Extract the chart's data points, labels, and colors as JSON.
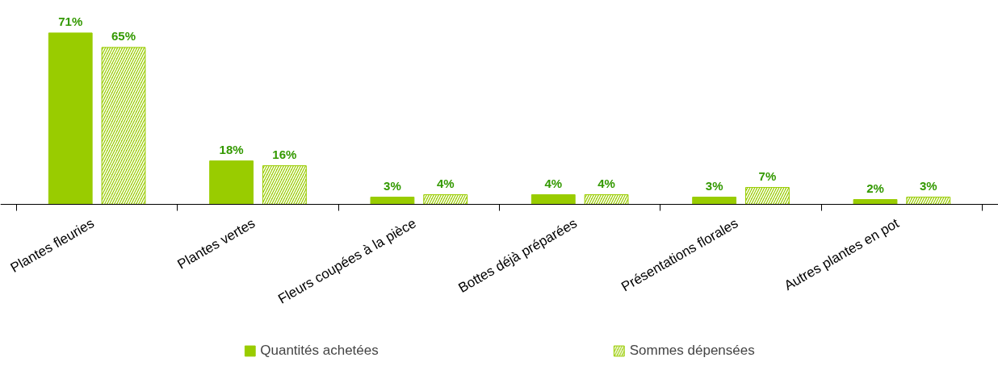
{
  "chart_data": {
    "type": "bar",
    "categories": [
      "Plantes fleuries",
      "Plantes vertes",
      "Fleurs coupées à la pièce",
      "Bottes déjà préparées",
      "Présentations florales",
      "Autres plantes en pot"
    ],
    "series": [
      {
        "name": "Quantités achetées",
        "color": "#99cc00",
        "values": [
          71,
          18,
          3,
          4,
          3,
          2
        ],
        "value_labels": [
          "71%",
          "18%",
          "3%",
          "4%",
          "3%",
          "2%"
        ]
      },
      {
        "name": "Sommes dépensées",
        "color": "#99cc00",
        "values": [
          65,
          16,
          4,
          4,
          7,
          3
        ],
        "value_labels": [
          "65%",
          "16%",
          "4%",
          "4%",
          "7%",
          "3%"
        ]
      }
    ],
    "legend": "bottom",
    "grid": false
  }
}
